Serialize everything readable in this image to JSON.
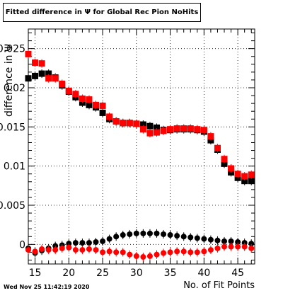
{
  "chart_data": {
    "type": "scatter",
    "title": "Fitted difference in Ψ for Global Rec Pion NoHits",
    "xlabel": "No. of Fit Points",
    "ylabel": "difference in Ψ",
    "xlim": [
      14,
      47.5
    ],
    "ylim": [
      -0.0025,
      0.0275
    ],
    "x_ticks": [
      15,
      20,
      25,
      30,
      35,
      40,
      45
    ],
    "y_ticks": [
      0,
      0.005,
      0.01,
      0.015,
      0.02,
      0.025
    ],
    "x_tick_labels": [
      "15",
      "20",
      "25",
      "30",
      "35",
      "40",
      "45"
    ],
    "y_tick_labels": [
      "0",
      "0.005",
      "0.01",
      "0.015",
      "0.02",
      "0.025"
    ],
    "grid": true,
    "x": [
      14,
      15,
      16,
      17,
      18,
      19,
      20,
      21,
      22,
      23,
      24,
      25,
      26,
      27,
      28,
      29,
      30,
      31,
      32,
      33,
      34,
      35,
      36,
      37,
      38,
      39,
      40,
      41,
      42,
      43,
      44,
      45,
      46,
      47
    ],
    "series": [
      {
        "marker": "square",
        "color": "#000000",
        "values": [
          0.0212,
          0.0215,
          0.0218,
          0.0218,
          0.0213,
          0.0203,
          0.0195,
          0.0188,
          0.0181,
          0.0178,
          0.0175,
          0.0168,
          0.016,
          0.0157,
          0.0155,
          0.0155,
          0.0154,
          0.0153,
          0.0151,
          0.0149,
          0.0146,
          0.0146,
          0.0147,
          0.0147,
          0.0147,
          0.0146,
          0.0144,
          0.0133,
          0.0121,
          0.0103,
          0.0092,
          0.0085,
          0.0081,
          0.0081
        ]
      },
      {
        "marker": "square",
        "color": "#ff0000",
        "values": [
          0.0243,
          0.0232,
          0.0231,
          0.0212,
          0.0212,
          0.0205,
          0.0196,
          0.0192,
          0.0186,
          0.0185,
          0.0178,
          0.0177,
          0.0163,
          0.0157,
          0.0155,
          0.0155,
          0.0154,
          0.0147,
          0.0142,
          0.0143,
          0.0145,
          0.0147,
          0.0148,
          0.0148,
          0.0148,
          0.0147,
          0.0146,
          0.0138,
          0.0123,
          0.0109,
          0.0097,
          0.009,
          0.0087,
          0.0089
        ]
      },
      {
        "marker": "circle",
        "color": "#000000",
        "values": [
          -0.0005,
          -0.0011,
          -0.0008,
          -0.0005,
          -0.0002,
          -0.0001,
          0.0001,
          0.0002,
          0.0002,
          0.0002,
          0.0003,
          0.0004,
          0.0007,
          0.001,
          0.0012,
          0.0013,
          0.0014,
          0.0014,
          0.0014,
          0.0014,
          0.0013,
          0.0012,
          0.0011,
          0.001,
          0.0009,
          0.0008,
          0.0007,
          0.0006,
          0.0005,
          0.0004,
          0.0004,
          0.0003,
          0.0002,
          0.0001
        ]
      },
      {
        "marker": "circle",
        "color": "#ff0000",
        "values": [
          -0.0007,
          -0.0009,
          -0.0006,
          -0.0007,
          -0.0007,
          -0.0005,
          -0.0004,
          -0.0007,
          -0.0007,
          -0.0006,
          -0.0007,
          -0.001,
          -0.0009,
          -0.001,
          -0.001,
          -0.0013,
          -0.0015,
          -0.0016,
          -0.0015,
          -0.0013,
          -0.0011,
          -0.001,
          -0.0009,
          -0.0009,
          -0.001,
          -0.001,
          -0.0009,
          -0.0007,
          -0.0005,
          -0.0003,
          -0.0003,
          -0.0003,
          -0.0003,
          -0.0005
        ]
      }
    ]
  },
  "footer": {
    "timestamp": "Wed Nov 25 11:42:19 2020"
  }
}
